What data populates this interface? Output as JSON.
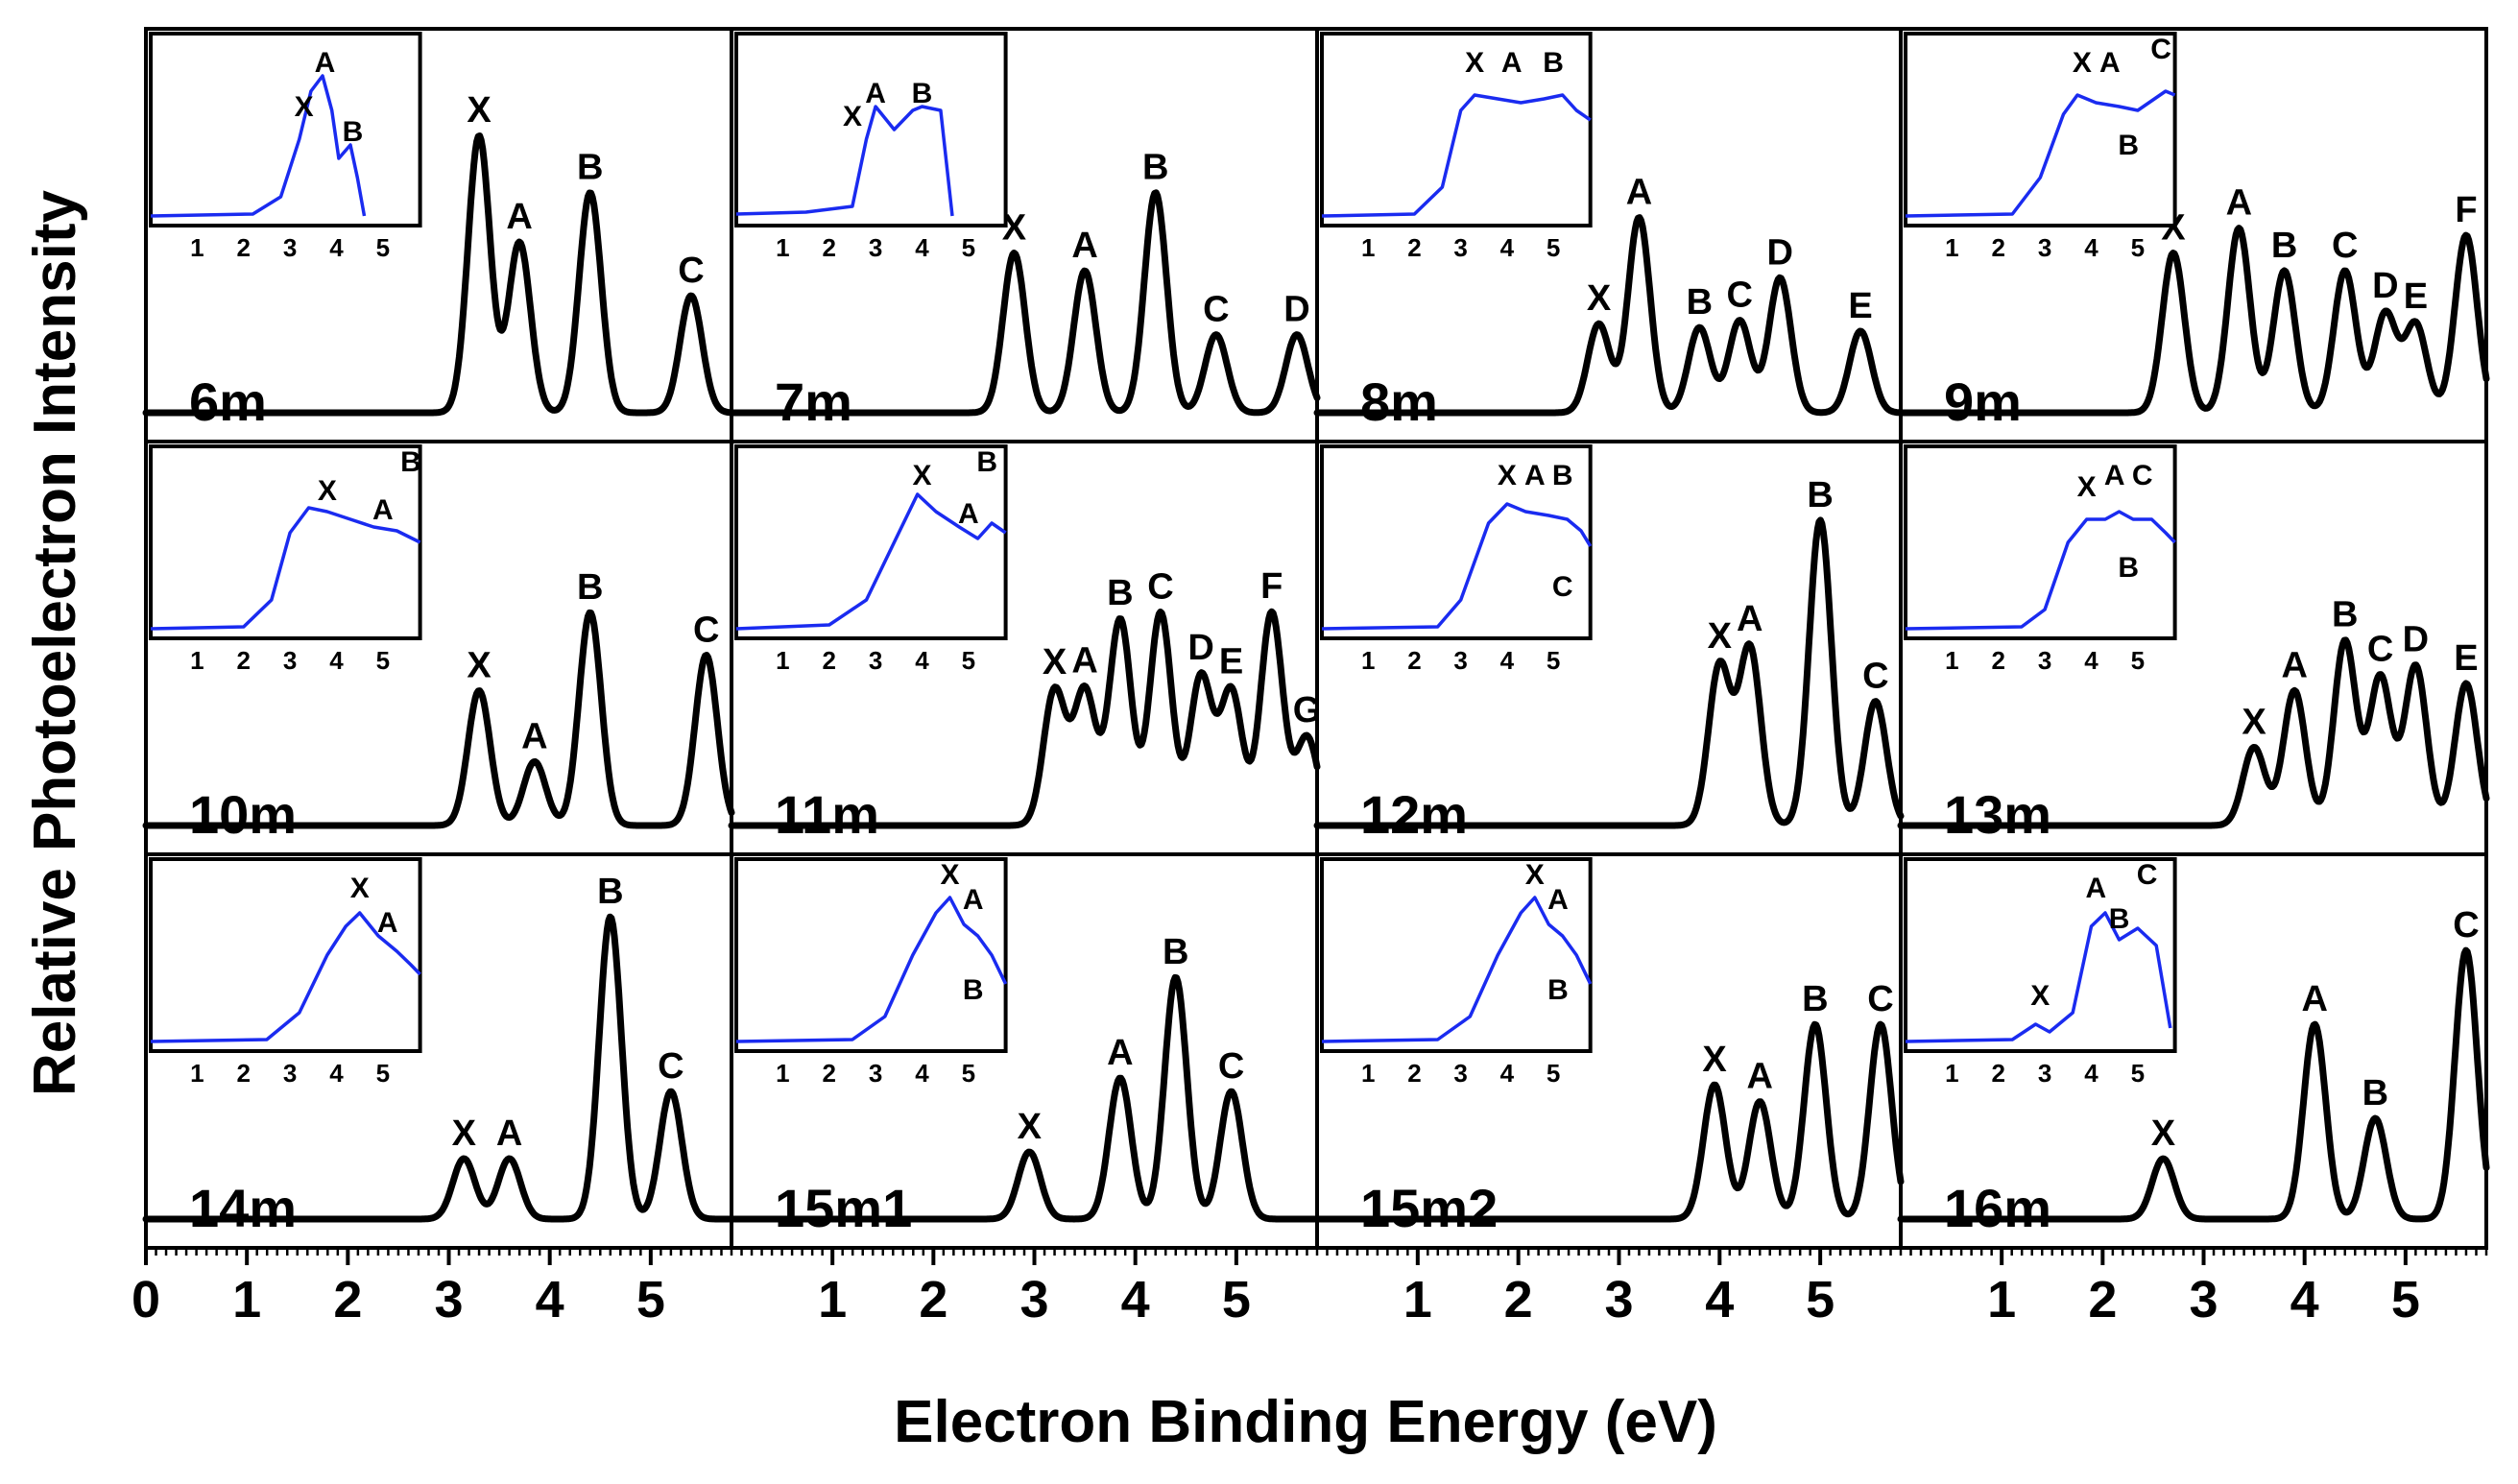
{
  "chart_data": {
    "type": "line",
    "xlabel": "Electron Binding Energy (eV)",
    "ylabel": "Relative Photoelectron Intensity",
    "xlim": [
      0,
      5.8
    ],
    "x_ticks": [
      0,
      1,
      2,
      3,
      4,
      5
    ],
    "inset_xlim": [
      0,
      5.8
    ],
    "inset_x_ticks": [
      1,
      2,
      3,
      4,
      5
    ],
    "panels": [
      {
        "label": "6m",
        "peaks": [
          {
            "name": "X",
            "x": 3.3,
            "h": 0.78
          },
          {
            "name": "A",
            "x": 3.7,
            "h": 0.48
          },
          {
            "name": "B",
            "x": 4.4,
            "h": 0.62
          },
          {
            "name": "C",
            "x": 5.4,
            "h": 0.33
          }
        ],
        "inset_peaks": [
          {
            "name": "X",
            "x": 3.3,
            "h": 0.55
          },
          {
            "name": "A",
            "x": 3.75,
            "h": 0.78
          },
          {
            "name": "B",
            "x": 4.35,
            "h": 0.42
          }
        ],
        "inset_curve": [
          [
            0,
            0.05
          ],
          [
            2.2,
            0.06
          ],
          [
            2.8,
            0.15
          ],
          [
            3.2,
            0.45
          ],
          [
            3.45,
            0.7
          ],
          [
            3.7,
            0.78
          ],
          [
            3.9,
            0.6
          ],
          [
            4.05,
            0.35
          ],
          [
            4.3,
            0.42
          ],
          [
            4.45,
            0.25
          ],
          [
            4.6,
            0.05
          ]
        ]
      },
      {
        "label": "7m",
        "peaks": [
          {
            "name": "X",
            "x": 2.8,
            "h": 0.45
          },
          {
            "name": "A",
            "x": 3.5,
            "h": 0.4
          },
          {
            "name": "B",
            "x": 4.2,
            "h": 0.62
          },
          {
            "name": "C",
            "x": 4.8,
            "h": 0.22
          },
          {
            "name": "D",
            "x": 5.6,
            "h": 0.22
          }
        ],
        "inset_peaks": [
          {
            "name": "X",
            "x": 2.5,
            "h": 0.5
          },
          {
            "name": "A",
            "x": 3.0,
            "h": 0.62
          },
          {
            "name": "B",
            "x": 4.0,
            "h": 0.62
          }
        ],
        "inset_curve": [
          [
            0,
            0.06
          ],
          [
            1.5,
            0.07
          ],
          [
            2.5,
            0.1
          ],
          [
            2.8,
            0.45
          ],
          [
            3.0,
            0.62
          ],
          [
            3.4,
            0.5
          ],
          [
            3.8,
            0.6
          ],
          [
            4.0,
            0.62
          ],
          [
            4.4,
            0.6
          ],
          [
            4.65,
            0.05
          ]
        ]
      },
      {
        "label": "8m",
        "peaks": [
          {
            "name": "X",
            "x": 2.8,
            "h": 0.25
          },
          {
            "name": "A",
            "x": 3.2,
            "h": 0.55
          },
          {
            "name": "B",
            "x": 3.8,
            "h": 0.24
          },
          {
            "name": "C",
            "x": 4.2,
            "h": 0.26
          },
          {
            "name": "D",
            "x": 4.6,
            "h": 0.38
          },
          {
            "name": "E",
            "x": 5.4,
            "h": 0.23
          }
        ],
        "inset_peaks": [
          {
            "name": "X",
            "x": 3.3,
            "h": 0.78
          },
          {
            "name": "A",
            "x": 4.1,
            "h": 0.78
          },
          {
            "name": "B",
            "x": 5.0,
            "h": 0.78
          }
        ],
        "inset_curve": [
          [
            0,
            0.05
          ],
          [
            2.0,
            0.06
          ],
          [
            2.6,
            0.2
          ],
          [
            3.0,
            0.6
          ],
          [
            3.3,
            0.68
          ],
          [
            3.8,
            0.66
          ],
          [
            4.3,
            0.64
          ],
          [
            4.8,
            0.66
          ],
          [
            5.2,
            0.68
          ],
          [
            5.5,
            0.6
          ],
          [
            5.8,
            0.55
          ]
        ]
      },
      {
        "label": "9m",
        "peaks": [
          {
            "name": "X",
            "x": 2.7,
            "h": 0.45
          },
          {
            "name": "A",
            "x": 3.35,
            "h": 0.52
          },
          {
            "name": "B",
            "x": 3.8,
            "h": 0.4
          },
          {
            "name": "C",
            "x": 4.4,
            "h": 0.4
          },
          {
            "name": "D",
            "x": 4.8,
            "h": 0.28
          },
          {
            "name": "E",
            "x": 5.1,
            "h": 0.25
          },
          {
            "name": "F",
            "x": 5.6,
            "h": 0.5
          }
        ],
        "inset_peaks": [
          {
            "name": "X",
            "x": 3.8,
            "h": 0.78
          },
          {
            "name": "A",
            "x": 4.4,
            "h": 0.78
          },
          {
            "name": "B",
            "x": 4.8,
            "h": 0.35
          },
          {
            "name": "C",
            "x": 5.5,
            "h": 0.85
          }
        ],
        "inset_curve": [
          [
            0,
            0.05
          ],
          [
            2.3,
            0.06
          ],
          [
            2.9,
            0.25
          ],
          [
            3.4,
            0.58
          ],
          [
            3.7,
            0.68
          ],
          [
            4.1,
            0.64
          ],
          [
            4.6,
            0.62
          ],
          [
            5.0,
            0.6
          ],
          [
            5.3,
            0.65
          ],
          [
            5.6,
            0.7
          ],
          [
            5.8,
            0.68
          ]
        ]
      },
      {
        "label": "10m",
        "peaks": [
          {
            "name": "X",
            "x": 3.3,
            "h": 0.38
          },
          {
            "name": "A",
            "x": 3.85,
            "h": 0.18
          },
          {
            "name": "B",
            "x": 4.4,
            "h": 0.6
          },
          {
            "name": "C",
            "x": 5.55,
            "h": 0.48
          }
        ],
        "inset_peaks": [
          {
            "name": "X",
            "x": 3.8,
            "h": 0.7
          },
          {
            "name": "A",
            "x": 5.0,
            "h": 0.6
          },
          {
            "name": "B",
            "x": 5.6,
            "h": 0.85
          }
        ],
        "inset_curve": [
          [
            0,
            0.05
          ],
          [
            2.0,
            0.06
          ],
          [
            2.6,
            0.2
          ],
          [
            3.0,
            0.55
          ],
          [
            3.4,
            0.68
          ],
          [
            3.8,
            0.66
          ],
          [
            4.3,
            0.62
          ],
          [
            4.8,
            0.58
          ],
          [
            5.3,
            0.56
          ],
          [
            5.8,
            0.5
          ]
        ]
      },
      {
        "label": "11m",
        "peaks": [
          {
            "name": "X",
            "x": 3.2,
            "h": 0.38
          },
          {
            "name": "A",
            "x": 3.5,
            "h": 0.38
          },
          {
            "name": "B",
            "x": 3.85,
            "h": 0.58
          },
          {
            "name": "C",
            "x": 4.25,
            "h": 0.6
          },
          {
            "name": "D",
            "x": 4.65,
            "h": 0.42
          },
          {
            "name": "E",
            "x": 4.95,
            "h": 0.38
          },
          {
            "name": "F",
            "x": 5.35,
            "h": 0.6
          },
          {
            "name": "G",
            "x": 5.7,
            "h": 0.25
          }
        ],
        "inset_peaks": [
          {
            "name": "X",
            "x": 4.0,
            "h": 0.78
          },
          {
            "name": "A",
            "x": 5.0,
            "h": 0.58
          },
          {
            "name": "B",
            "x": 5.4,
            "h": 0.85
          }
        ],
        "inset_curve": [
          [
            0,
            0.05
          ],
          [
            2.0,
            0.07
          ],
          [
            2.8,
            0.2
          ],
          [
            3.5,
            0.55
          ],
          [
            3.9,
            0.75
          ],
          [
            4.3,
            0.66
          ],
          [
            4.8,
            0.58
          ],
          [
            5.2,
            0.52
          ],
          [
            5.5,
            0.6
          ],
          [
            5.8,
            0.55
          ]
        ]
      },
      {
        "label": "12m",
        "peaks": [
          {
            "name": "X",
            "x": 4.0,
            "h": 0.45
          },
          {
            "name": "A",
            "x": 4.3,
            "h": 0.5
          },
          {
            "name": "B",
            "x": 5.0,
            "h": 0.86
          },
          {
            "name": "C",
            "x": 5.55,
            "h": 0.35
          }
        ],
        "inset_peaks": [
          {
            "name": "X",
            "x": 4.0,
            "h": 0.78
          },
          {
            "name": "A",
            "x": 4.6,
            "h": 0.78
          },
          {
            "name": "B",
            "x": 5.2,
            "h": 0.78
          },
          {
            "name": "C",
            "x": 5.2,
            "h": 0.2
          }
        ],
        "inset_curve": [
          [
            0,
            0.05
          ],
          [
            2.5,
            0.06
          ],
          [
            3.0,
            0.2
          ],
          [
            3.6,
            0.6
          ],
          [
            4.0,
            0.7
          ],
          [
            4.4,
            0.66
          ],
          [
            4.9,
            0.64
          ],
          [
            5.3,
            0.62
          ],
          [
            5.6,
            0.56
          ],
          [
            5.8,
            0.48
          ]
        ]
      },
      {
        "label": "13m",
        "peaks": [
          {
            "name": "X",
            "x": 3.5,
            "h": 0.22
          },
          {
            "name": "A",
            "x": 3.9,
            "h": 0.38
          },
          {
            "name": "B",
            "x": 4.4,
            "h": 0.52
          },
          {
            "name": "C",
            "x": 4.75,
            "h": 0.42
          },
          {
            "name": "D",
            "x": 5.1,
            "h": 0.45
          },
          {
            "name": "E",
            "x": 5.6,
            "h": 0.4
          }
        ],
        "inset_peaks": [
          {
            "name": "X",
            "x": 3.9,
            "h": 0.72
          },
          {
            "name": "A",
            "x": 4.5,
            "h": 0.78
          },
          {
            "name": "B",
            "x": 4.8,
            "h": 0.3
          },
          {
            "name": "C",
            "x": 5.1,
            "h": 0.78
          }
        ],
        "inset_curve": [
          [
            0,
            0.05
          ],
          [
            2.5,
            0.06
          ],
          [
            3.0,
            0.15
          ],
          [
            3.5,
            0.5
          ],
          [
            3.9,
            0.62
          ],
          [
            4.3,
            0.62
          ],
          [
            4.6,
            0.66
          ],
          [
            4.9,
            0.62
          ],
          [
            5.3,
            0.62
          ],
          [
            5.6,
            0.55
          ],
          [
            5.8,
            0.5
          ]
        ]
      },
      {
        "label": "14m",
        "peaks": [
          {
            "name": "X",
            "x": 3.15,
            "h": 0.18
          },
          {
            "name": "A",
            "x": 3.6,
            "h": 0.18
          },
          {
            "name": "B",
            "x": 4.6,
            "h": 0.9
          },
          {
            "name": "C",
            "x": 5.2,
            "h": 0.38
          }
        ],
        "inset_peaks": [
          {
            "name": "X",
            "x": 4.5,
            "h": 0.78
          },
          {
            "name": "A",
            "x": 5.1,
            "h": 0.6
          }
        ],
        "inset_curve": [
          [
            0,
            0.05
          ],
          [
            2.5,
            0.06
          ],
          [
            3.2,
            0.2
          ],
          [
            3.8,
            0.5
          ],
          [
            4.2,
            0.65
          ],
          [
            4.5,
            0.72
          ],
          [
            4.9,
            0.6
          ],
          [
            5.3,
            0.52
          ],
          [
            5.6,
            0.45
          ],
          [
            5.8,
            0.4
          ]
        ]
      },
      {
        "label": "15m1",
        "peaks": [
          {
            "name": "X",
            "x": 2.95,
            "h": 0.2
          },
          {
            "name": "A",
            "x": 3.85,
            "h": 0.42
          },
          {
            "name": "B",
            "x": 4.4,
            "h": 0.72
          },
          {
            "name": "C",
            "x": 4.95,
            "h": 0.38
          }
        ],
        "inset_peaks": [
          {
            "name": "X",
            "x": 4.6,
            "h": 0.85
          },
          {
            "name": "A",
            "x": 5.1,
            "h": 0.72
          },
          {
            "name": "B",
            "x": 5.1,
            "h": 0.25
          }
        ],
        "inset_curve": [
          [
            0,
            0.05
          ],
          [
            2.5,
            0.06
          ],
          [
            3.2,
            0.18
          ],
          [
            3.8,
            0.5
          ],
          [
            4.3,
            0.72
          ],
          [
            4.6,
            0.8
          ],
          [
            4.9,
            0.66
          ],
          [
            5.2,
            0.6
          ],
          [
            5.5,
            0.5
          ],
          [
            5.8,
            0.35
          ]
        ]
      },
      {
        "label": "15m2",
        "peaks": [
          {
            "name": "X",
            "x": 3.95,
            "h": 0.4
          },
          {
            "name": "A",
            "x": 4.4,
            "h": 0.35
          },
          {
            "name": "B",
            "x": 4.95,
            "h": 0.58
          },
          {
            "name": "C",
            "x": 5.6,
            "h": 0.58
          }
        ],
        "inset_peaks": [
          {
            "name": "X",
            "x": 4.6,
            "h": 0.85
          },
          {
            "name": "A",
            "x": 5.1,
            "h": 0.72
          },
          {
            "name": "B",
            "x": 5.1,
            "h": 0.25
          }
        ],
        "inset_curve": [
          [
            0,
            0.05
          ],
          [
            2.5,
            0.06
          ],
          [
            3.2,
            0.18
          ],
          [
            3.8,
            0.5
          ],
          [
            4.3,
            0.72
          ],
          [
            4.6,
            0.8
          ],
          [
            4.9,
            0.66
          ],
          [
            5.2,
            0.6
          ],
          [
            5.5,
            0.5
          ],
          [
            5.8,
            0.35
          ]
        ]
      },
      {
        "label": "16m",
        "peaks": [
          {
            "name": "X",
            "x": 2.6,
            "h": 0.18
          },
          {
            "name": "A",
            "x": 4.1,
            "h": 0.58
          },
          {
            "name": "B",
            "x": 4.7,
            "h": 0.3
          },
          {
            "name": "C",
            "x": 5.6,
            "h": 0.8
          }
        ],
        "inset_peaks": [
          {
            "name": "X",
            "x": 2.9,
            "h": 0.22
          },
          {
            "name": "A",
            "x": 4.1,
            "h": 0.78
          },
          {
            "name": "B",
            "x": 4.6,
            "h": 0.62
          },
          {
            "name": "C",
            "x": 5.2,
            "h": 0.85
          }
        ],
        "inset_curve": [
          [
            0,
            0.05
          ],
          [
            2.3,
            0.06
          ],
          [
            2.8,
            0.14
          ],
          [
            3.1,
            0.1
          ],
          [
            3.6,
            0.2
          ],
          [
            4.0,
            0.65
          ],
          [
            4.3,
            0.72
          ],
          [
            4.6,
            0.58
          ],
          [
            5.0,
            0.64
          ],
          [
            5.4,
            0.55
          ],
          [
            5.7,
            0.12
          ]
        ]
      }
    ]
  }
}
